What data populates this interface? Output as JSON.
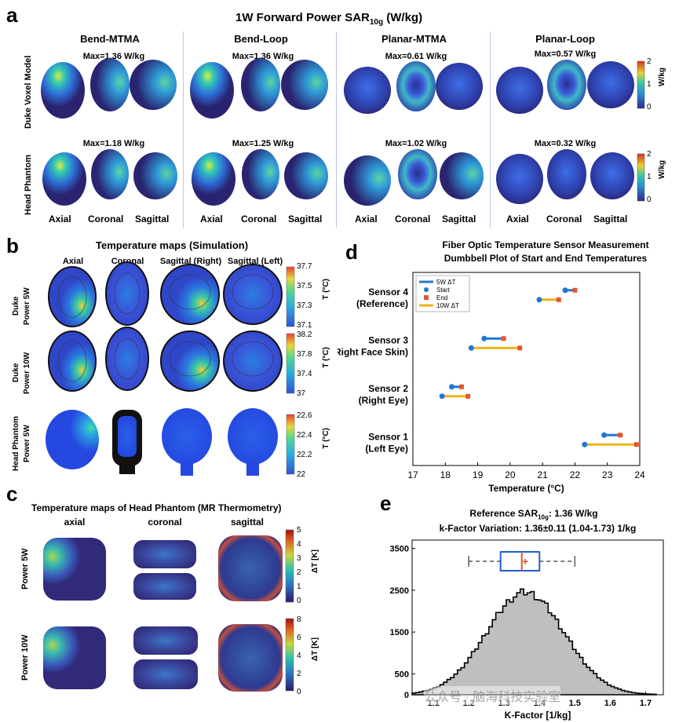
{
  "panel_a": {
    "label": "a",
    "title_main": "1W Forward Power SAR",
    "title_sub": "10g",
    "title_unit": " (W/kg)",
    "columns": [
      "Bend-MTMA",
      "Bend-Loop",
      "Planar-MTMA",
      "Planar-Loop"
    ],
    "row_labels": [
      "Duke Voxel Model",
      "Head Phantom"
    ],
    "max_row1": [
      "Max=1.36 W/kg",
      "Max=1.36 W/kg",
      "Max=0.61 W/kg",
      "Max=0.57 W/kg"
    ],
    "max_row2": [
      "Max=1.18 W/kg",
      "Max=1.25 W/kg",
      "Max=1.02 W/kg",
      "Max=0.32 W/kg"
    ],
    "view_labels": [
      "Axial",
      "Coronal",
      "Sagittal"
    ],
    "colorbar_ticks": [
      "2",
      "1",
      "0"
    ],
    "colorbar_unit": "W/kg"
  },
  "panel_b": {
    "label": "b",
    "title": "Temperature maps (Simulation)",
    "columns": [
      "Axial",
      "Coronal",
      "Sagittal (Right)",
      "Sagittal (Left)"
    ],
    "row_labels": [
      [
        "Duke",
        "Power 5W"
      ],
      [
        "Duke",
        "Power 10W"
      ],
      [
        "Head Phantom",
        "Power 5W"
      ]
    ],
    "colorbars": [
      {
        "ticks": [
          "37.7",
          "37.5",
          "37.3",
          "37.1"
        ],
        "unit": "T (°C)"
      },
      {
        "ticks": [
          "38.2",
          "37.8",
          "37.4",
          "37"
        ],
        "unit": "T (°C)"
      },
      {
        "ticks": [
          "22.6",
          "22.4",
          "22.2",
          "22"
        ],
        "unit": "T (°C)"
      }
    ]
  },
  "panel_c": {
    "label": "c",
    "title": "Temperature maps of Head Phantom (MR Thermometry)",
    "columns": [
      "axial",
      "coronal",
      "sagittal"
    ],
    "row_labels": [
      "Power 5W",
      "Power 10W"
    ],
    "colorbars": [
      {
        "ticks": [
          "5",
          "4",
          "3",
          "2",
          "1",
          "0"
        ],
        "unit": "ΔT [K]"
      },
      {
        "ticks": [
          "8",
          "6",
          "4",
          "2",
          "0"
        ],
        "unit": "ΔT [K]"
      }
    ]
  },
  "panel_d": {
    "label": "d",
    "title_line1": "Fiber Optic Temperature Sensor Measurement",
    "title_line2": "Dumbbell Plot of Start and End Temperatures",
    "legend": [
      "5W ΔT",
      "Start",
      "End",
      "10W ΔT"
    ],
    "colors": {
      "w5": "#1f77d4",
      "w10": "#f0b21a",
      "start": "#1f77d4",
      "end": "#e8542a"
    }
  },
  "panel_e": {
    "label": "e",
    "title_line1_a": "Reference SAR",
    "title_line1_sub": "10g",
    "title_line1_b": ": 1.36 W/kg",
    "title_line2": "k-Factor Variation: 1.36±0.11 (1.04-1.73) 1/kg",
    "watermark": "公众号 · 脑海科技实验室"
  },
  "chart_data": [
    {
      "type": "scatter",
      "title": "Fiber Optic Temperature Sensor Measurement / Dumbbell Plot of Start and End Temperatures",
      "xlabel": "Temperature (°C)",
      "ylabel": "",
      "xlim": [
        17,
        24
      ],
      "xticks": [
        "17",
        "18",
        "19",
        "20",
        "21",
        "22",
        "23",
        "24"
      ],
      "categories": [
        [
          "Sensor 4",
          "(Reference)"
        ],
        [
          "Sensor 3",
          "(Right Face Skin)"
        ],
        [
          "Sensor 2",
          "(Right Eye)"
        ],
        [
          "Sensor 1",
          "(Left Eye)"
        ]
      ],
      "series": [
        {
          "name": "5W ΔT",
          "start": [
            21.7,
            19.2,
            18.2,
            22.9
          ],
          "end": [
            22.0,
            19.8,
            18.5,
            23.4
          ]
        },
        {
          "name": "10W ΔT",
          "start": [
            20.9,
            18.8,
            17.9,
            22.3
          ],
          "end": [
            21.5,
            20.3,
            18.7,
            23.9
          ]
        }
      ],
      "legend": "top-left"
    },
    {
      "type": "bar",
      "title": "Reference SAR10g: 1.36 W/kg / k-Factor Variation: 1.36±0.11 (1.04-1.73) 1/kg",
      "xlabel": "K-Factor [1/kg]",
      "ylabel": "",
      "xlim": [
        1.04,
        1.75
      ],
      "ylim": [
        0,
        3700
      ],
      "xticks": [
        "1.1",
        "1.2",
        "1.3",
        "1.4",
        "1.5",
        "1.6",
        "1.7"
      ],
      "yticks": [
        "0",
        "500",
        "1500",
        "2500",
        "3500"
      ],
      "distribution": {
        "mean": 1.36,
        "sd": 0.11,
        "min": 1.04,
        "max": 1.73,
        "peak_count": 2450
      },
      "boxplot": {
        "whisker_low": 1.2,
        "q1": 1.29,
        "median": 1.35,
        "mean": 1.36,
        "q3": 1.4,
        "whisker_high": 1.5
      }
    }
  ]
}
